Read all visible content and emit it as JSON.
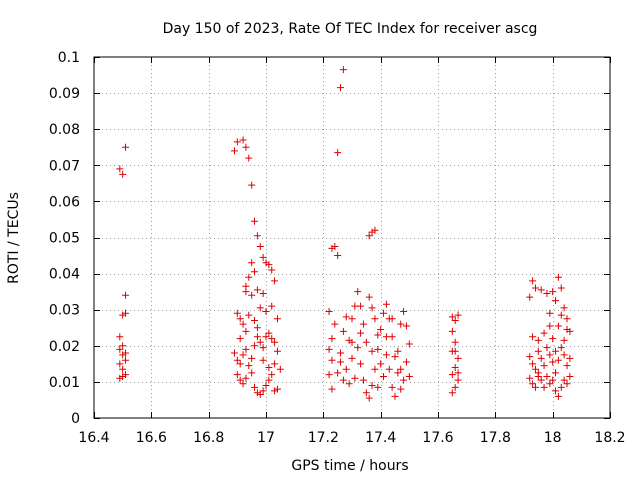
{
  "chart_data": {
    "type": "scatter",
    "title": "Day 150 of 2023, Rate Of TEC Index for receiver ascg",
    "xlabel": "GPS time / hours",
    "ylabel": "ROTI / TECUs",
    "xlim": [
      16.4,
      18.2
    ],
    "ylim": [
      0,
      0.1
    ],
    "xticks": [
      16.4,
      16.6,
      16.8,
      17.0,
      17.2,
      17.4,
      17.6,
      17.8,
      18.0,
      18.2
    ],
    "xtick_labels": [
      "16.4",
      "16.6",
      "16.8",
      "17",
      "17.2",
      "17.4",
      "17.6",
      "17.8",
      "18",
      "18.2"
    ],
    "yticks": [
      0,
      0.01,
      0.02,
      0.03,
      0.04,
      0.05,
      0.06,
      0.07,
      0.08,
      0.09,
      0.1
    ],
    "ytick_labels": [
      "0",
      "0.01",
      "0.02",
      "0.03",
      "0.04",
      "0.05",
      "0.06",
      "0.07",
      "0.08",
      "0.09",
      "0.1"
    ],
    "grid": true,
    "marker": "+",
    "color": "#e00000",
    "series": [
      {
        "name": "ROTI",
        "points": [
          [
            16.49,
            0.069
          ],
          [
            16.5,
            0.0675
          ],
          [
            16.51,
            0.075
          ],
          [
            16.51,
            0.034
          ],
          [
            16.5,
            0.0285
          ],
          [
            16.51,
            0.029
          ],
          [
            16.49,
            0.0225
          ],
          [
            16.49,
            0.019
          ],
          [
            16.5,
            0.0175
          ],
          [
            16.51,
            0.016
          ],
          [
            16.49,
            0.015
          ],
          [
            16.5,
            0.0135
          ],
          [
            16.51,
            0.012
          ],
          [
            16.49,
            0.011
          ],
          [
            16.5,
            0.0115
          ],
          [
            16.51,
            0.018
          ],
          [
            16.5,
            0.02
          ],
          [
            16.89,
            0.074
          ],
          [
            16.9,
            0.0765
          ],
          [
            16.92,
            0.077
          ],
          [
            16.93,
            0.075
          ],
          [
            16.94,
            0.072
          ],
          [
            16.95,
            0.0645
          ],
          [
            16.96,
            0.0545
          ],
          [
            16.97,
            0.0505
          ],
          [
            16.98,
            0.0475
          ],
          [
            16.99,
            0.0445
          ],
          [
            17.0,
            0.043
          ],
          [
            17.01,
            0.0425
          ],
          [
            17.02,
            0.041
          ],
          [
            17.03,
            0.038
          ],
          [
            16.95,
            0.043
          ],
          [
            16.96,
            0.0405
          ],
          [
            16.94,
            0.039
          ],
          [
            16.93,
            0.0365
          ],
          [
            16.93,
            0.035
          ],
          [
            16.95,
            0.034
          ],
          [
            16.97,
            0.0355
          ],
          [
            16.99,
            0.0345
          ],
          [
            16.9,
            0.029
          ],
          [
            16.91,
            0.0275
          ],
          [
            16.92,
            0.026
          ],
          [
            16.94,
            0.0285
          ],
          [
            16.96,
            0.027
          ],
          [
            16.98,
            0.0305
          ],
          [
            17.0,
            0.0295
          ],
          [
            17.02,
            0.031
          ],
          [
            17.04,
            0.0275
          ],
          [
            16.89,
            0.018
          ],
          [
            16.9,
            0.016
          ],
          [
            16.91,
            0.015
          ],
          [
            16.92,
            0.0175
          ],
          [
            16.93,
            0.019
          ],
          [
            16.94,
            0.0145
          ],
          [
            16.95,
            0.0165
          ],
          [
            16.96,
            0.02
          ],
          [
            16.97,
            0.0225
          ],
          [
            16.98,
            0.021
          ],
          [
            16.99,
            0.0195
          ],
          [
            17.0,
            0.0225
          ],
          [
            17.01,
            0.0235
          ],
          [
            17.02,
            0.022
          ],
          [
            17.03,
            0.021
          ],
          [
            17.04,
            0.0185
          ],
          [
            16.91,
            0.022
          ],
          [
            16.93,
            0.024
          ],
          [
            16.97,
            0.025
          ],
          [
            16.9,
            0.012
          ],
          [
            16.91,
            0.0105
          ],
          [
            16.92,
            0.0095
          ],
          [
            16.93,
            0.011
          ],
          [
            16.95,
            0.0125
          ],
          [
            16.96,
            0.0085
          ],
          [
            16.97,
            0.007
          ],
          [
            16.98,
            0.0065
          ],
          [
            16.99,
            0.0075
          ],
          [
            17.0,
            0.009
          ],
          [
            17.01,
            0.0105
          ],
          [
            17.02,
            0.012
          ],
          [
            17.03,
            0.0075
          ],
          [
            17.04,
            0.008
          ],
          [
            17.05,
            0.0135
          ],
          [
            17.03,
            0.015
          ],
          [
            17.01,
            0.014
          ],
          [
            16.99,
            0.016
          ],
          [
            17.27,
            0.0965
          ],
          [
            17.26,
            0.0915
          ],
          [
            17.25,
            0.0735
          ],
          [
            17.23,
            0.047
          ],
          [
            17.24,
            0.0475
          ],
          [
            17.25,
            0.045
          ],
          [
            17.36,
            0.0505
          ],
          [
            17.37,
            0.0515
          ],
          [
            17.38,
            0.052
          ],
          [
            17.22,
            0.0295
          ],
          [
            17.24,
            0.026
          ],
          [
            17.23,
            0.022
          ],
          [
            17.22,
            0.019
          ],
          [
            17.23,
            0.016
          ],
          [
            17.22,
            0.012
          ],
          [
            17.23,
            0.008
          ],
          [
            17.25,
            0.0125
          ],
          [
            17.26,
            0.018
          ],
          [
            17.27,
            0.024
          ],
          [
            17.28,
            0.028
          ],
          [
            17.29,
            0.0215
          ],
          [
            17.3,
            0.0165
          ],
          [
            17.31,
            0.011
          ],
          [
            17.32,
            0.035
          ],
          [
            17.33,
            0.031
          ],
          [
            17.34,
            0.026
          ],
          [
            17.35,
            0.021
          ],
          [
            17.33,
            0.015
          ],
          [
            17.34,
            0.0105
          ],
          [
            17.35,
            0.007
          ],
          [
            17.36,
            0.0055
          ],
          [
            17.37,
            0.009
          ],
          [
            17.38,
            0.0135
          ],
          [
            17.39,
            0.019
          ],
          [
            17.4,
            0.0245
          ],
          [
            17.41,
            0.029
          ],
          [
            17.42,
            0.0315
          ],
          [
            17.43,
            0.0275
          ],
          [
            17.44,
            0.0225
          ],
          [
            17.45,
            0.017
          ],
          [
            17.46,
            0.0125
          ],
          [
            17.47,
            0.008
          ],
          [
            17.48,
            0.0105
          ],
          [
            17.49,
            0.0155
          ],
          [
            17.5,
            0.0205
          ],
          [
            17.49,
            0.0255
          ],
          [
            17.48,
            0.0295
          ],
          [
            17.47,
            0.026
          ],
          [
            17.46,
            0.0185
          ],
          [
            17.28,
            0.0135
          ],
          [
            17.29,
            0.0095
          ],
          [
            17.3,
            0.0275
          ],
          [
            17.31,
            0.031
          ],
          [
            17.32,
            0.0195
          ],
          [
            17.36,
            0.0335
          ],
          [
            17.37,
            0.0305
          ],
          [
            17.38,
            0.0275
          ],
          [
            17.39,
            0.023
          ],
          [
            17.4,
            0.015
          ],
          [
            17.41,
            0.0115
          ],
          [
            17.42,
            0.0175
          ],
          [
            17.43,
            0.0135
          ],
          [
            17.44,
            0.0085
          ],
          [
            17.45,
            0.006
          ],
          [
            17.26,
            0.0155
          ],
          [
            17.27,
            0.0105
          ],
          [
            17.3,
            0.021
          ],
          [
            17.33,
            0.0235
          ],
          [
            17.37,
            0.0185
          ],
          [
            17.39,
            0.0085
          ],
          [
            17.42,
            0.0225
          ],
          [
            17.44,
            0.0275
          ],
          [
            17.47,
            0.0135
          ],
          [
            17.5,
            0.0115
          ],
          [
            17.65,
            0.028
          ],
          [
            17.66,
            0.027
          ],
          [
            17.67,
            0.0285
          ],
          [
            17.65,
            0.024
          ],
          [
            17.66,
            0.021
          ],
          [
            17.65,
            0.0185
          ],
          [
            17.67,
            0.0165
          ],
          [
            17.66,
            0.014
          ],
          [
            17.65,
            0.012
          ],
          [
            17.67,
            0.0105
          ],
          [
            17.66,
            0.0085
          ],
          [
            17.65,
            0.007
          ],
          [
            17.67,
            0.0125
          ],
          [
            17.66,
            0.0185
          ],
          [
            17.92,
            0.0335
          ],
          [
            17.93,
            0.038
          ],
          [
            17.94,
            0.036
          ],
          [
            17.96,
            0.0355
          ],
          [
            17.98,
            0.0345
          ],
          [
            18.0,
            0.035
          ],
          [
            18.02,
            0.039
          ],
          [
            18.03,
            0.036
          ],
          [
            18.01,
            0.0325
          ],
          [
            18.04,
            0.0305
          ],
          [
            18.05,
            0.0275
          ],
          [
            18.03,
            0.0285
          ],
          [
            18.06,
            0.024
          ],
          [
            17.99,
            0.029
          ],
          [
            17.93,
            0.0225
          ],
          [
            17.95,
            0.0215
          ],
          [
            17.97,
            0.0235
          ],
          [
            17.99,
            0.0255
          ],
          [
            18.0,
            0.022
          ],
          [
            18.02,
            0.0255
          ],
          [
            18.04,
            0.0215
          ],
          [
            18.05,
            0.0245
          ],
          [
            17.92,
            0.017
          ],
          [
            17.93,
            0.015
          ],
          [
            17.94,
            0.0135
          ],
          [
            17.95,
            0.0185
          ],
          [
            17.96,
            0.0165
          ],
          [
            17.97,
            0.0145
          ],
          [
            17.98,
            0.0195
          ],
          [
            17.99,
            0.0175
          ],
          [
            18.0,
            0.0155
          ],
          [
            18.01,
            0.0185
          ],
          [
            18.02,
            0.016
          ],
          [
            18.03,
            0.0195
          ],
          [
            18.04,
            0.0175
          ],
          [
            18.05,
            0.0145
          ],
          [
            18.06,
            0.0165
          ],
          [
            17.92,
            0.011
          ],
          [
            17.93,
            0.0095
          ],
          [
            17.94,
            0.0085
          ],
          [
            17.95,
            0.0115
          ],
          [
            17.96,
            0.0105
          ],
          [
            17.97,
            0.0085
          ],
          [
            17.98,
            0.0115
          ],
          [
            17.99,
            0.0095
          ],
          [
            18.0,
            0.0105
          ],
          [
            18.01,
            0.0125
          ],
          [
            18.02,
            0.006
          ],
          [
            18.03,
            0.0085
          ],
          [
            18.04,
            0.0105
          ],
          [
            18.05,
            0.0095
          ],
          [
            18.06,
            0.0115
          ],
          [
            18.01,
            0.0075
          ],
          [
            17.95,
            0.0125
          ]
        ]
      }
    ]
  }
}
